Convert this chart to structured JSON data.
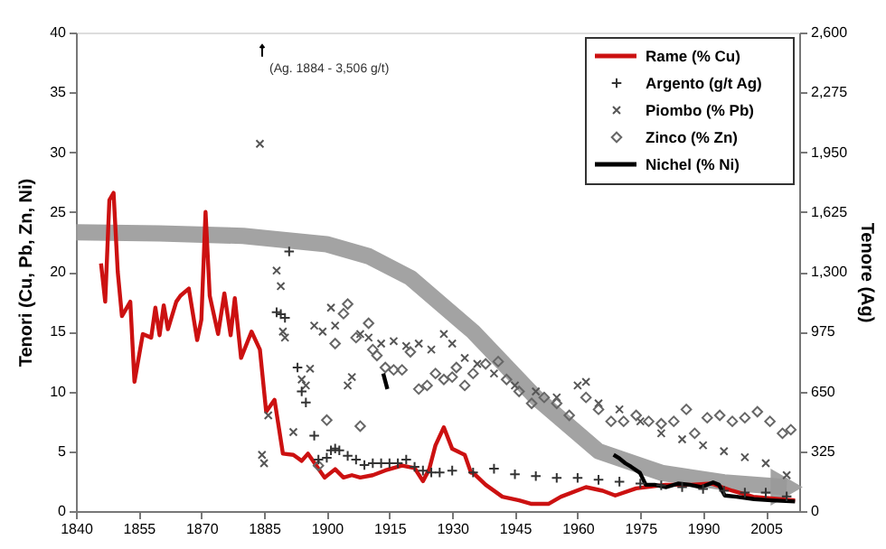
{
  "chart_data": {
    "type": "line",
    "ylabel": "Tenori (Cu, Pb, Zn, Ni)",
    "y2label": "Tenore (Ag)",
    "xlim": [
      1840,
      2013
    ],
    "xticks": [
      1840,
      1855,
      1870,
      1885,
      1900,
      1915,
      1930,
      1945,
      1960,
      1975,
      1990,
      2005
    ],
    "ylim": [
      0,
      40
    ],
    "yticks": [
      0,
      5,
      10,
      15,
      20,
      25,
      30,
      35,
      40
    ],
    "y2lim": [
      0,
      2600
    ],
    "y2ticks": [
      0,
      325,
      650,
      975,
      {
        "value": 1300,
        "label": "1,300"
      },
      {
        "value": 1625,
        "label": "1,625"
      },
      {
        "value": 1950,
        "label": "1,950"
      },
      {
        "value": 2275,
        "label": "2,275"
      },
      {
        "value": 2600,
        "label": "2,600"
      }
    ],
    "grid": false,
    "legend": "top right",
    "annotations": [
      "(Ag. 1884 - 3,506 g/t)"
    ],
    "series": [
      {
        "type": "line",
        "color": "#999999",
        "x": [
          1840,
          1860,
          1880,
          1900,
          1910,
          1920,
          1935,
          1950,
          1965,
          1980,
          1995,
          2010
        ],
        "values": [
          23.3,
          23.2,
          23.0,
          22.3,
          21.3,
          19.5,
          15.0,
          9.5,
          5.0,
          3.2,
          2.4,
          2.0
        ]
      },
      {
        "type": "line",
        "name": "Rame (% Cu)",
        "color": "#cc1111",
        "x": [
          1846,
          1847,
          1848,
          1849,
          1850,
          1851,
          1853,
          1854,
          1856,
          1858,
          1859,
          1860,
          1861,
          1862,
          1864,
          1865,
          1867,
          1869,
          1870,
          1871,
          1872,
          1874,
          1875.5,
          1877,
          1878,
          1879.5,
          1882,
          1884,
          1885.5,
          1887.5,
          1889.5,
          1892,
          1894,
          1895.5,
          1897.5,
          1899.5,
          1902,
          1904,
          1906,
          1908,
          1911,
          1914,
          1918,
          1921,
          1923,
          1924.5,
          1926,
          1928,
          1930,
          1933,
          1934.5,
          1935,
          1938,
          1942,
          1946,
          1949,
          1953,
          1956,
          1962,
          1966,
          1969,
          1974,
          1981,
          1987,
          1992,
          1997,
          2002,
          2012
        ],
        "values": [
          20.7,
          17.5,
          26.0,
          26.6,
          20.0,
          16.3,
          17.5,
          10.8,
          14.8,
          14.5,
          17.0,
          14.7,
          17.2,
          15.2,
          17.5,
          18.0,
          18.6,
          14.3,
          16.0,
          25.0,
          18.0,
          14.8,
          18.2,
          14.7,
          17.8,
          12.8,
          15.0,
          13.5,
          8.3,
          9.3,
          4.8,
          4.7,
          4.2,
          4.8,
          3.8,
          2.8,
          3.5,
          2.8,
          3.0,
          2.8,
          3.0,
          3.4,
          3.8,
          3.6,
          2.5,
          3.5,
          5.5,
          7.0,
          5.2,
          4.7,
          3.2,
          3.2,
          2.2,
          1.2,
          0.9,
          0.6,
          0.6,
          1.2,
          2.0,
          1.7,
          1.3,
          1.9,
          2.2,
          2.2,
          2.3,
          1.7,
          1.2,
          0.9
        ]
      },
      {
        "type": "scatter",
        "name": "Argento (g/t Ag)",
        "color": "#333333",
        "marker": "cross",
        "axis": "y2",
        "x": [
          1888,
          1889,
          1890,
          1891,
          1893,
          1894,
          1895,
          1897,
          1898,
          1900,
          1901,
          1902,
          1903,
          1905,
          1907,
          1909,
          1911,
          1913,
          1915,
          1917,
          1919,
          1921,
          1923,
          1925,
          1927,
          1930,
          1935,
          1940,
          1945,
          1950,
          1955,
          1960,
          1965,
          1970,
          1975,
          1980,
          1985,
          1990,
          1995,
          2000,
          2005,
          2010
        ],
        "values": [
          1080,
          1070,
          1050,
          1410,
          780,
          650,
          590,
          410,
          280,
          290,
          330,
          340,
          330,
          300,
          280,
          250,
          260,
          260,
          260,
          260,
          280,
          240,
          220,
          210,
          210,
          220,
          210,
          230,
          200,
          190,
          180,
          180,
          170,
          160,
          150,
          140,
          130,
          120,
          110,
          100,
          100,
          80
        ]
      },
      {
        "type": "scatter",
        "name": "Piombo (% Pb)",
        "color": "#555555",
        "marker": "x",
        "x": [
          1884,
          1884.5,
          1885,
          1886,
          1888,
          1889,
          1889.5,
          1890,
          1892,
          1894,
          1895,
          1896,
          1897,
          1899,
          1901,
          1902,
          1905,
          1906,
          1908,
          1910,
          1913,
          1916,
          1919,
          1922,
          1925,
          1928,
          1930,
          1933,
          1936,
          1940,
          1945,
          1950,
          1955,
          1960,
          1962,
          1965,
          1970,
          1975,
          1980,
          1985,
          1990,
          1995,
          2000,
          2005,
          2010
        ],
        "values": [
          30.7,
          4.7,
          4.0,
          8.0,
          20.1,
          18.8,
          15.0,
          14.5,
          6.6,
          11.0,
          10.5,
          11.9,
          15.5,
          15.0,
          17.0,
          15.5,
          10.5,
          11.2,
          14.8,
          14.5,
          14.0,
          14.2,
          13.8,
          14.0,
          13.5,
          14.8,
          14.0,
          12.8,
          12.3,
          11.5,
          10.5,
          10.0,
          9.5,
          10.5,
          10.8,
          9.0,
          8.5,
          7.5,
          6.5,
          6.0,
          5.5,
          5.0,
          4.5,
          4.0,
          3.0
        ]
      },
      {
        "type": "scatter",
        "name": "Zinco (% Zn)",
        "color": "#666666",
        "marker": "diamond",
        "x": [
          1898,
          1900,
          1902,
          1904,
          1905,
          1907,
          1908,
          1910,
          1911,
          1912,
          1914,
          1916,
          1918,
          1920,
          1922,
          1924,
          1926,
          1928,
          1930,
          1931,
          1933,
          1935,
          1938,
          1941,
          1943,
          1946,
          1949,
          1952,
          1955,
          1958,
          1962,
          1965,
          1968,
          1971,
          1974,
          1977,
          1980,
          1983,
          1986,
          1988,
          1991,
          1994,
          1997,
          2000,
          2003,
          2006,
          2009,
          2011
        ],
        "values": [
          3.8,
          7.6,
          14.0,
          16.5,
          17.3,
          14.5,
          7.1,
          15.7,
          13.5,
          13.0,
          12.0,
          11.8,
          11.8,
          13.3,
          10.2,
          10.5,
          11.5,
          11.0,
          11.2,
          12.0,
          10.5,
          11.5,
          12.3,
          12.5,
          11.0,
          10.0,
          9.0,
          9.5,
          9.0,
          8.0,
          9.5,
          8.5,
          7.5,
          7.5,
          8.0,
          7.5,
          7.3,
          7.5,
          8.5,
          6.5,
          7.8,
          8.0,
          7.5,
          7.8,
          8.3,
          7.5,
          6.5,
          6.8
        ]
      },
      {
        "type": "line",
        "name": "Nichel (% Ni)",
        "color": "#000000",
        "x": [
          1913.5,
          1914.5,
          1940,
          1968.6,
          1970,
          1971.4,
          1972.8,
          1974.9,
          1976.3,
          1978.4,
          1981.2,
          1984,
          1986.8,
          1989.6,
          1992.4,
          1993.8,
          1995.2,
          1998,
          2002.2,
          2006.4,
          2012
        ],
        "values": [
          11.5,
          10.2,
          null,
          4.7,
          4.4,
          4.0,
          3.7,
          3.2,
          2.2,
          2.2,
          2.0,
          2.3,
          2.2,
          2.0,
          2.4,
          2.2,
          1.3,
          1.2,
          1.0,
          0.9,
          0.8
        ]
      }
    ]
  }
}
